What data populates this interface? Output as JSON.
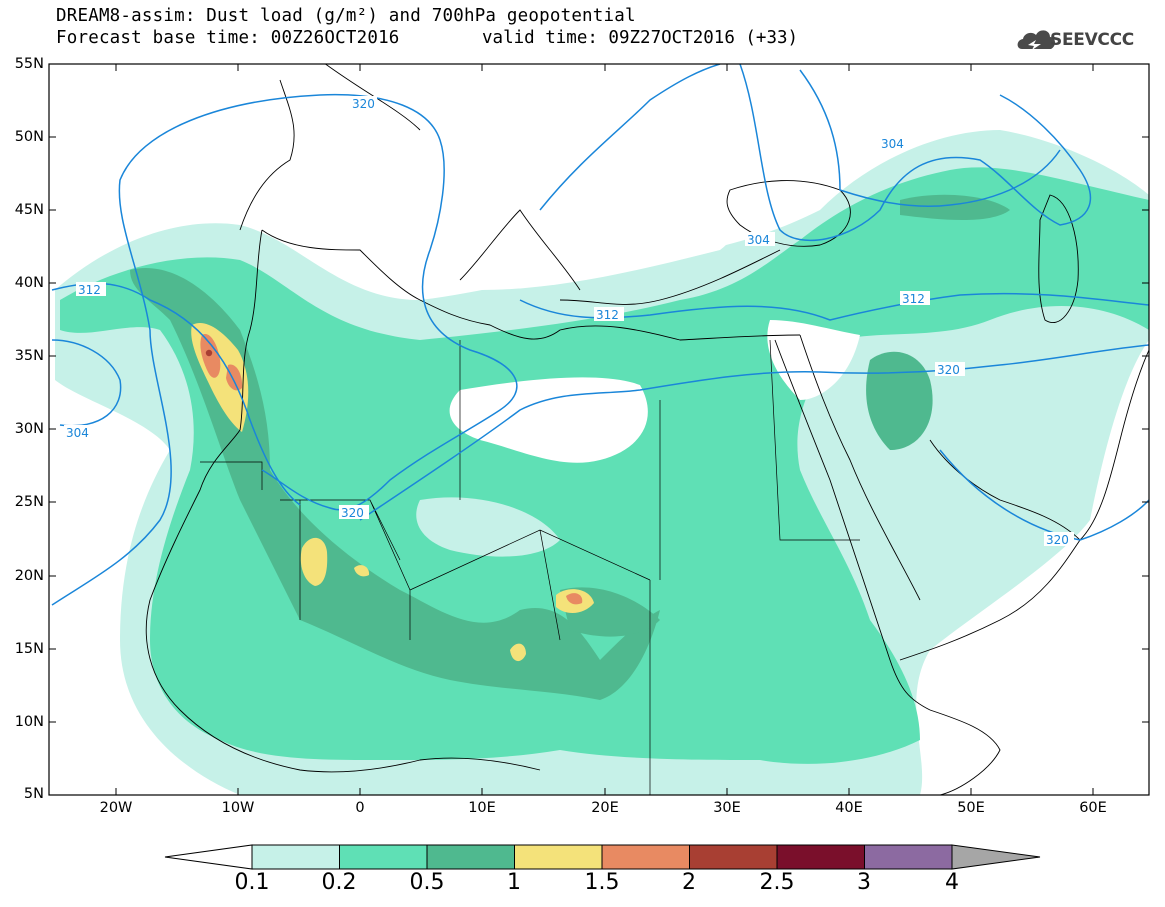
{
  "title": {
    "line1": "DREAM8-assim: Dust load (g/m²) and 700hPa geopotential",
    "line2": "Forecast base time: 00Z26OCT2016",
    "valid": "valid time: 09Z27OCT2016 (+33)"
  },
  "logo": {
    "text": "SEEVCCC",
    "icon": "cloud-icon"
  },
  "map": {
    "lat_labels": [
      "55N",
      "50N",
      "45N",
      "40N",
      "35N",
      "30N",
      "25N",
      "20N",
      "15N",
      "10N",
      "5N"
    ],
    "lon_labels": [
      "20W",
      "10W",
      "0",
      "10E",
      "20E",
      "30E",
      "40E",
      "50E",
      "60E"
    ],
    "lat_range": [
      5,
      55
    ],
    "lon_range": [
      -25,
      65
    ],
    "geopotential_contour_labels": [
      "320",
      "304",
      "312",
      "312",
      "312",
      "304",
      "320",
      "320",
      "304",
      "320"
    ],
    "colors": {
      "contour": "#1a86d9",
      "coast": "#000000"
    }
  },
  "colorbar": {
    "labels": [
      "0.1",
      "0.2",
      "0.5",
      "1",
      "1.5",
      "2",
      "2.5",
      "3",
      "4"
    ],
    "colors": [
      "#ffffff",
      "#c6f1e8",
      "#5fe0b5",
      "#4fb98f",
      "#f4e27a",
      "#e88a62",
      "#a83f33",
      "#7a0f2b",
      "#8c6aa1",
      "#a6a6a6"
    ]
  }
}
